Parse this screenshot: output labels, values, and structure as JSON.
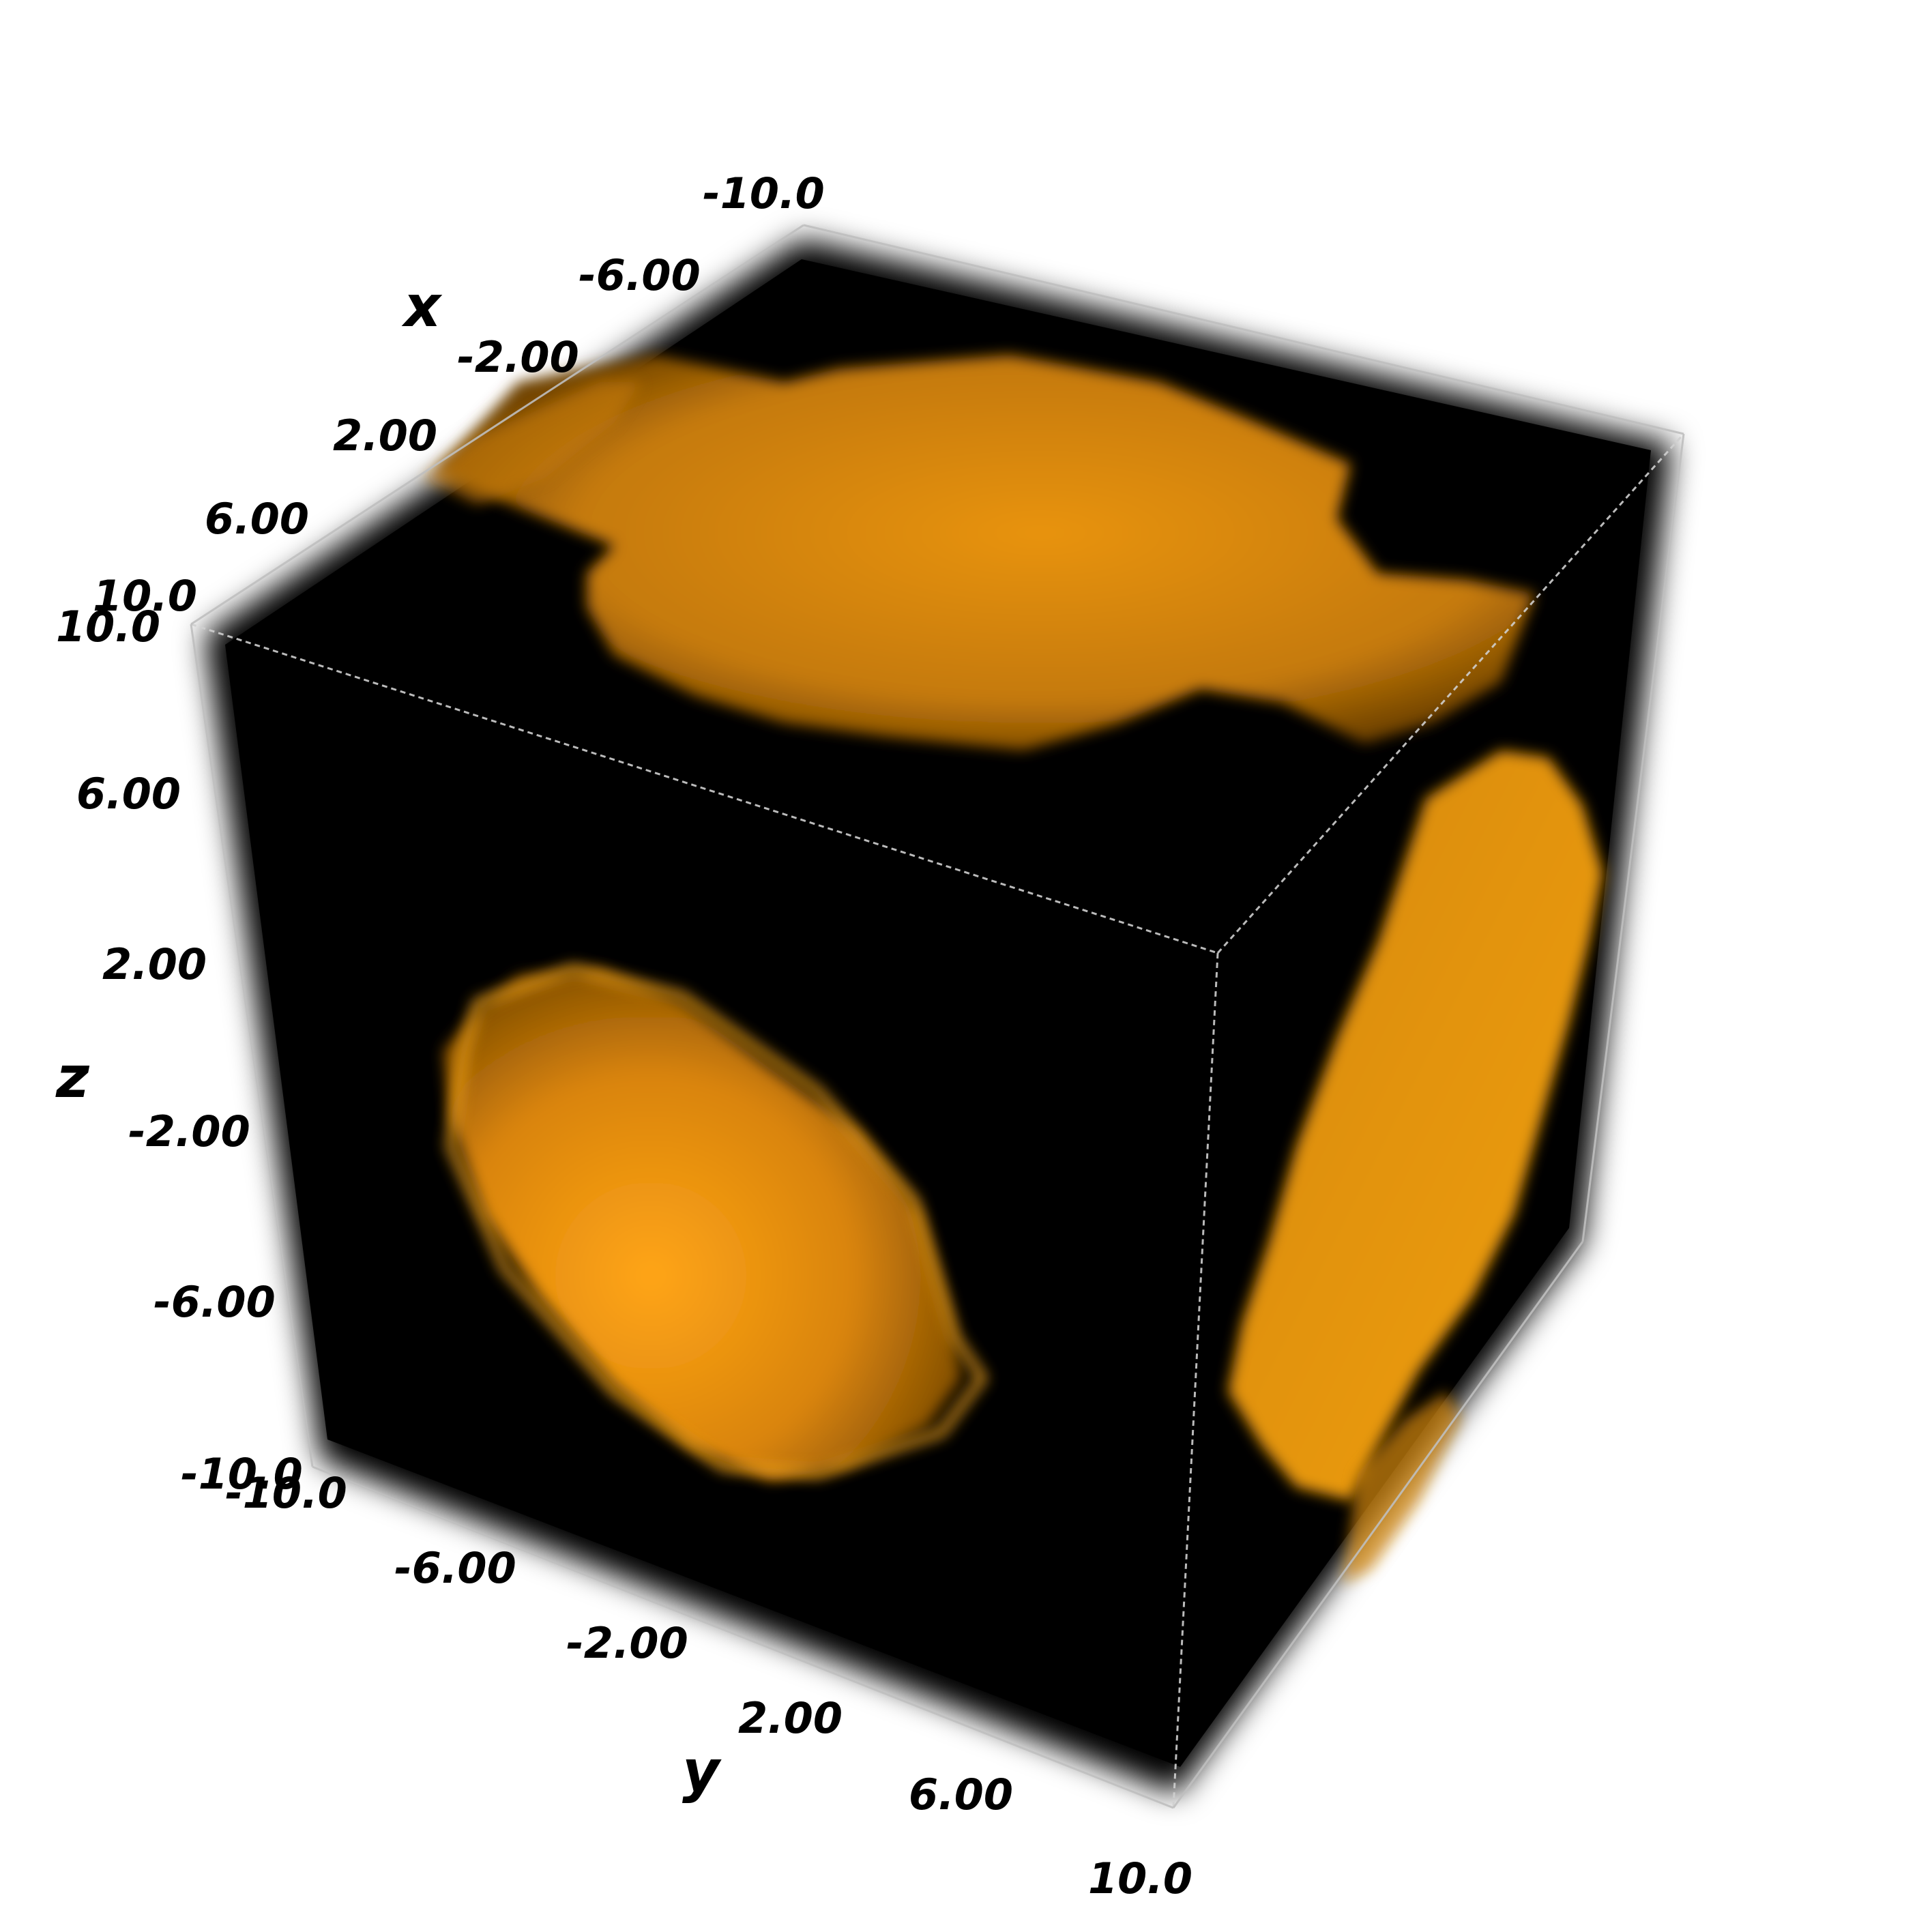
{
  "figure": {
    "axes": {
      "x": {
        "label": "x",
        "ticks": [
          "-10.0",
          "-6.00",
          "-2.00",
          "2.00",
          "6.00",
          "10.0"
        ]
      },
      "y": {
        "label": "y",
        "ticks": [
          "-10.0",
          "-6.00",
          "-2.00",
          "2.00",
          "6.00",
          "10.0"
        ]
      },
      "z": {
        "label": "z",
        "ticks": [
          "10.0",
          "6.00",
          "2.00",
          "-2.00",
          "-6.00",
          "-10.0"
        ]
      }
    },
    "colors": {
      "background": "#000000",
      "volume": "#f39a0a",
      "page": "#ffffff"
    }
  }
}
